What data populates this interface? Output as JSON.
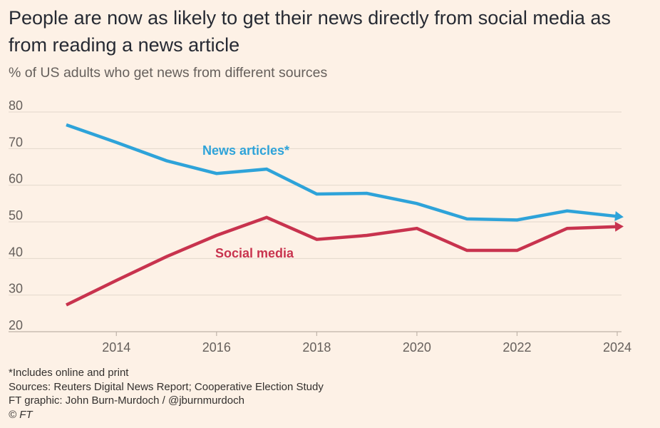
{
  "title": "People are now as likely to get their news directly from social media as from reading a news article",
  "subtitle": "% of US adults who get news from different sources",
  "footer": {
    "note": "*Includes online and print",
    "sources": "Sources: Reuters Digital News Report; Cooperative Election Study",
    "credit": "FT graphic: John Burn-Murdoch / @jburnmurdoch",
    "copyright": "© FT"
  },
  "colors": {
    "news_articles": "#2ea3d9",
    "social_media": "#c8334e",
    "grid": "#e3d8cc",
    "axis_text": "#66605c"
  },
  "chart_data": {
    "type": "line",
    "title": "People are now as likely to get their news directly from social media as from reading a news article",
    "subtitle": "% of US adults who get news from different sources",
    "xlabel": "",
    "ylabel": "",
    "xlim": [
      2013,
      2024
    ],
    "ylim": [
      20,
      80
    ],
    "x_ticks": [
      2014,
      2016,
      2018,
      2020,
      2022,
      2024
    ],
    "y_ticks": [
      20,
      30,
      40,
      50,
      60,
      70,
      80
    ],
    "grid": "horizontal",
    "legend": "inline labels",
    "series": [
      {
        "name": "News articles*",
        "x": [
          2013,
          2014,
          2015,
          2016,
          2017,
          2018,
          2019,
          2020,
          2021,
          2022,
          2023,
          2024
        ],
        "values": [
          76.5,
          71.7,
          66.7,
          63.2,
          64.4,
          57.6,
          57.8,
          55.0,
          50.8,
          50.5,
          53.0,
          51.5
        ]
      },
      {
        "name": "Social media",
        "x": [
          2013,
          2014,
          2015,
          2016,
          2017,
          2018,
          2019,
          2020,
          2021,
          2022,
          2023,
          2024
        ],
        "values": [
          27.3,
          34.0,
          40.5,
          46.3,
          51.2,
          45.2,
          46.3,
          48.2,
          42.2,
          42.2,
          48.2,
          48.7
        ]
      }
    ]
  }
}
